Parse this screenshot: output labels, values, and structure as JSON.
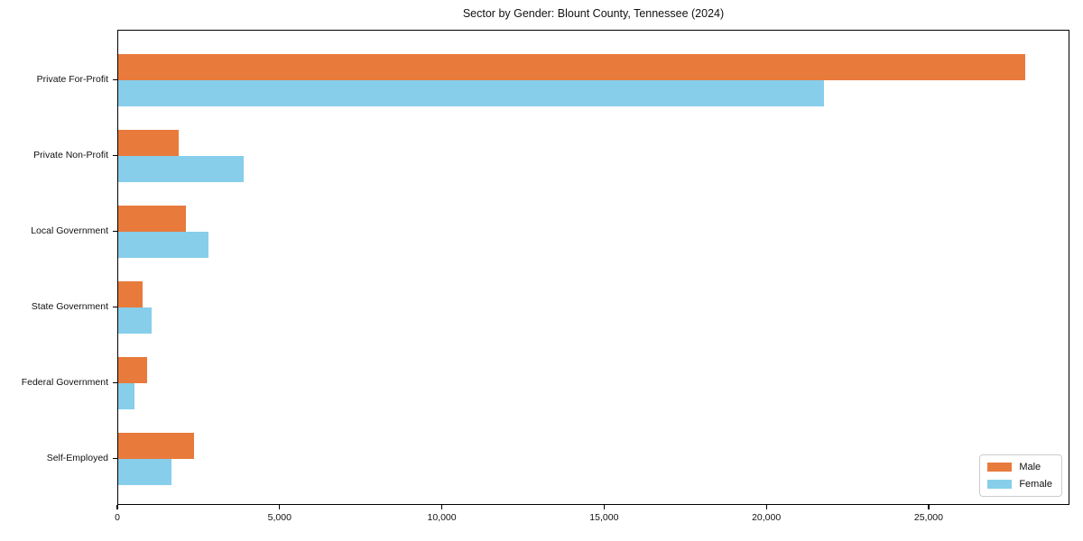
{
  "chart_data": {
    "type": "bar",
    "orientation": "horizontal",
    "title": "Sector by Gender: Blount County, Tennessee (2024)",
    "categories": [
      "Private For-Profit",
      "Private Non-Profit",
      "Local Government",
      "State Government",
      "Federal Government",
      "Self-Employed"
    ],
    "series": [
      {
        "name": "Male",
        "color": "#e87a3c",
        "values": [
          27940,
          1860,
          2080,
          760,
          880,
          2340
        ]
      },
      {
        "name": "Female",
        "color": "#87ceeb",
        "values": [
          21740,
          3870,
          2790,
          1030,
          490,
          1650
        ]
      }
    ],
    "xlabel": "",
    "ylabel": "",
    "xlim": [
      0,
      29340
    ],
    "xticks": {
      "values": [
        0,
        5000,
        10000,
        15000,
        20000,
        25000
      ],
      "labels": [
        "0",
        "5,000",
        "10,000",
        "15,000",
        "20,000",
        "25,000"
      ]
    },
    "grid": false,
    "legend_position": "lower right",
    "frame": "full-box"
  }
}
